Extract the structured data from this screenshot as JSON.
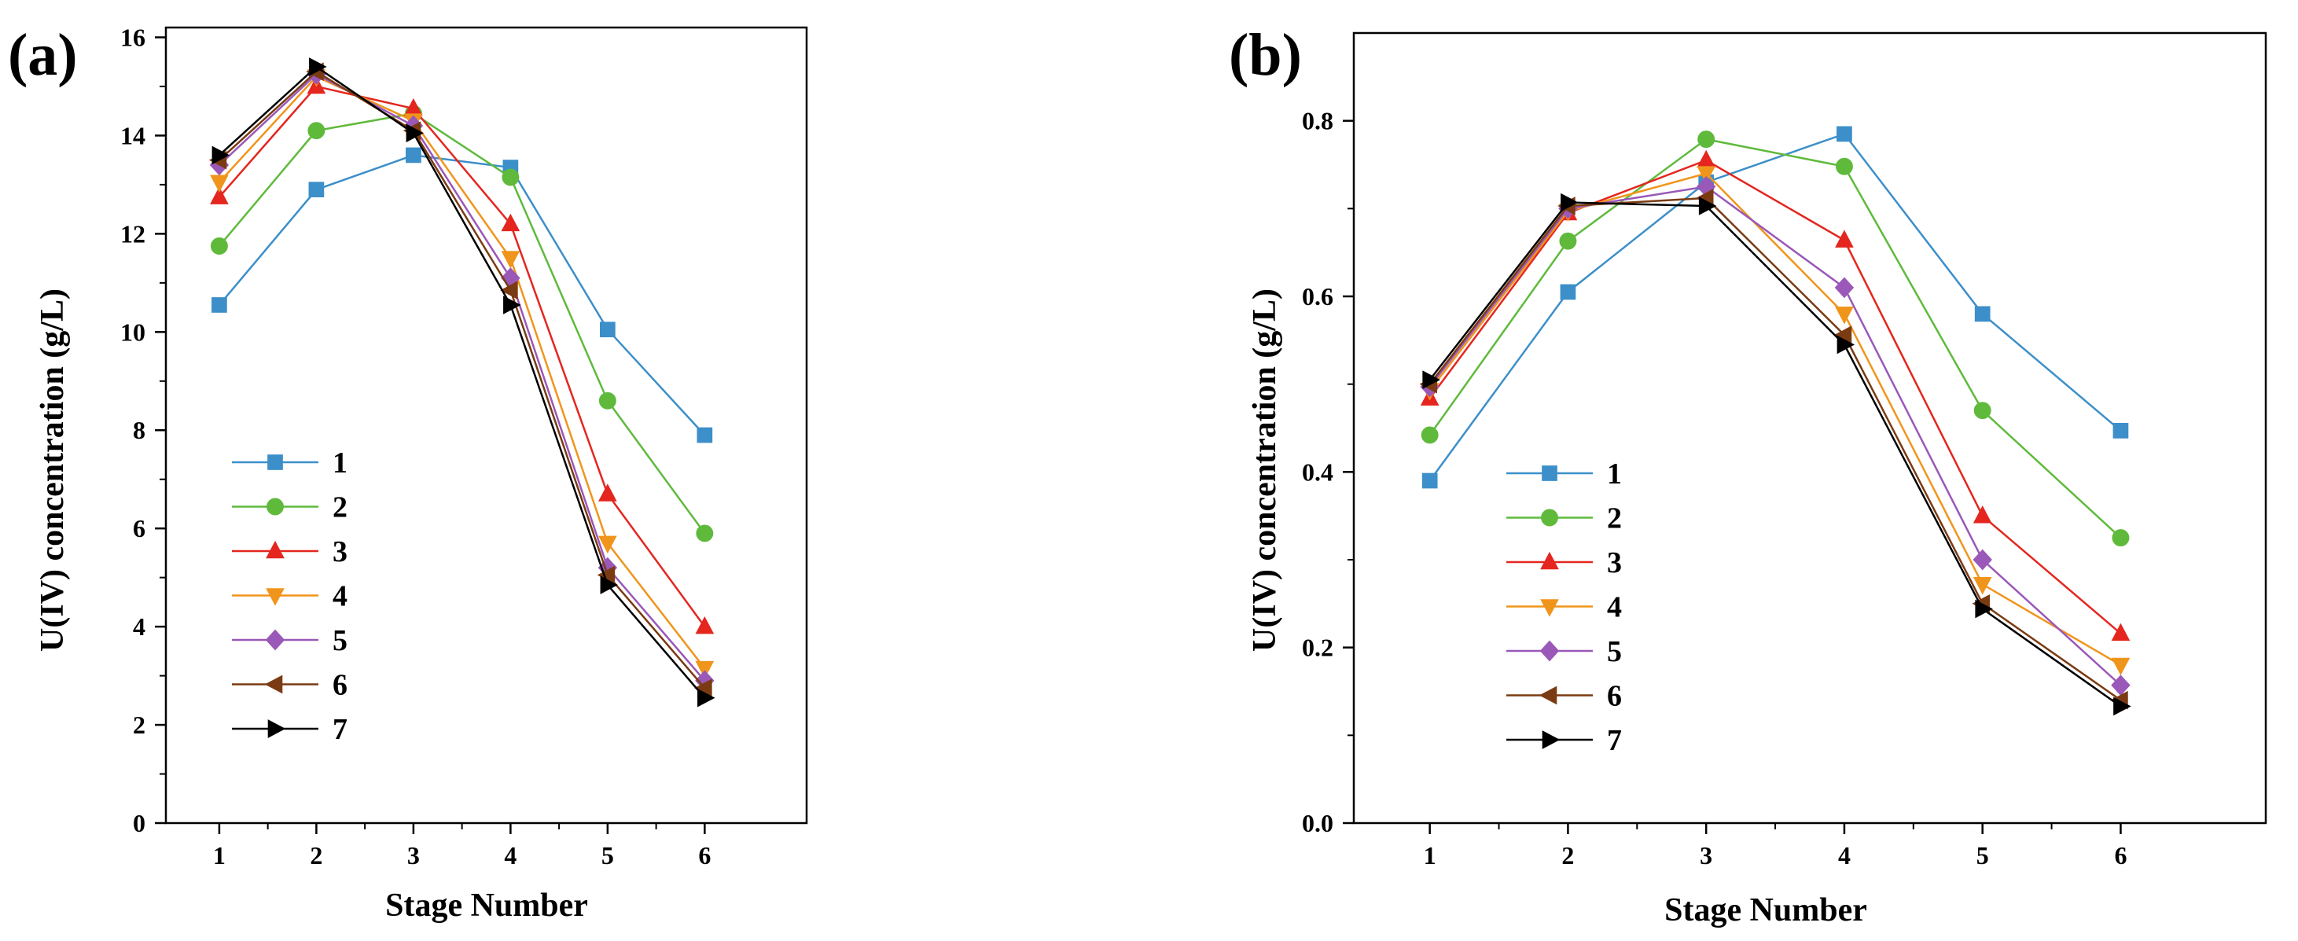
{
  "chart_data": [
    {
      "type": "line",
      "panel_label": "(a)",
      "xlabel": "Stage Number",
      "ylabel": "U(IV) concentration (g/L)",
      "x": [
        1,
        2,
        3,
        4,
        5,
        6
      ],
      "xticks": [
        "1",
        "2",
        "3",
        "4",
        "5",
        "6"
      ],
      "xlim": [
        0.45,
        7.05
      ],
      "ylim": [
        0,
        16.2
      ],
      "yticks": [
        "0",
        "2",
        "4",
        "6",
        "8",
        "10",
        "12",
        "14",
        "16"
      ],
      "legend_position": "lower-left",
      "grid": false,
      "series": [
        {
          "name": "1",
          "color": "#3c8fc9",
          "marker": "square",
          "values": [
            10.55,
            12.9,
            13.6,
            13.35,
            10.05,
            7.9
          ]
        },
        {
          "name": "2",
          "color": "#5fba3c",
          "marker": "circle",
          "values": [
            11.75,
            14.1,
            14.45,
            13.15,
            8.6,
            5.9
          ]
        },
        {
          "name": "3",
          "color": "#e4261f",
          "marker": "triangle-up",
          "values": [
            12.75,
            15.0,
            14.55,
            12.2,
            6.7,
            4.0
          ]
        },
        {
          "name": "4",
          "color": "#f0951c",
          "marker": "triangle-down",
          "values": [
            13.05,
            15.2,
            14.3,
            11.5,
            5.7,
            3.15
          ]
        },
        {
          "name": "5",
          "color": "#9a58b8",
          "marker": "diamond",
          "values": [
            13.4,
            15.25,
            14.2,
            11.1,
            5.2,
            2.9
          ]
        },
        {
          "name": "6",
          "color": "#7b3b12",
          "marker": "triangle-left",
          "values": [
            13.5,
            15.3,
            14.1,
            10.85,
            5.05,
            2.75
          ]
        },
        {
          "name": "7",
          "color": "#000000",
          "marker": "triangle-right",
          "values": [
            13.6,
            15.4,
            14.05,
            10.55,
            4.85,
            2.55
          ]
        }
      ]
    },
    {
      "type": "line",
      "panel_label": "(b)",
      "xlabel": "Stage Number",
      "ylabel": "U(IV) concentration (g/L)",
      "x": [
        1,
        2,
        3,
        4,
        5,
        6
      ],
      "xticks": [
        "1",
        "2",
        "3",
        "4",
        "5",
        "6"
      ],
      "xlim": [
        0.45,
        7.05
      ],
      "ylim": [
        0,
        0.9
      ],
      "yticks": [
        "0.0",
        "0.2",
        "0.4",
        "0.6",
        "0.8"
      ],
      "legend_position": "lower-left",
      "grid": false,
      "series": [
        {
          "name": "1",
          "color": "#3c8fc9",
          "marker": "square",
          "values": [
            0.39,
            0.605,
            0.73,
            0.785,
            0.58,
            0.447
          ]
        },
        {
          "name": "2",
          "color": "#5fba3c",
          "marker": "circle",
          "values": [
            0.442,
            0.663,
            0.779,
            0.748,
            0.47,
            0.325
          ]
        },
        {
          "name": "3",
          "color": "#e4261f",
          "marker": "triangle-up",
          "values": [
            0.484,
            0.695,
            0.755,
            0.664,
            0.35,
            0.216
          ]
        },
        {
          "name": "4",
          "color": "#f0951c",
          "marker": "triangle-down",
          "values": [
            0.493,
            0.697,
            0.74,
            0.58,
            0.272,
            0.18
          ]
        },
        {
          "name": "5",
          "color": "#9a58b8",
          "marker": "diamond",
          "values": [
            0.497,
            0.7,
            0.725,
            0.61,
            0.3,
            0.157
          ]
        },
        {
          "name": "6",
          "color": "#7b3b12",
          "marker": "triangle-left",
          "values": [
            0.5,
            0.703,
            0.712,
            0.556,
            0.25,
            0.14
          ]
        },
        {
          "name": "7",
          "color": "#000000",
          "marker": "triangle-right",
          "values": [
            0.505,
            0.707,
            0.703,
            0.545,
            0.244,
            0.133
          ]
        }
      ]
    }
  ]
}
